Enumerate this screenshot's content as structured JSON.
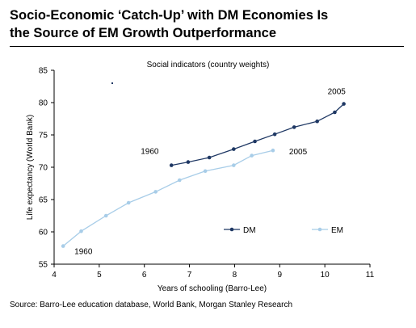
{
  "title_line1": "Socio-Economic ‘Catch-Up’ with DM Economies Is",
  "title_line2": "the Source of EM Growth Outperformance",
  "source": "Source: Barro-Lee education database, World Bank, Morgan Stanley Research",
  "chart_data": {
    "type": "line",
    "title": "Social indicators (country weights)",
    "xlabel": "Years of schooling (Barro-Lee)",
    "ylabel": "Life expectancy (World Bank)",
    "xlim": [
      4,
      11
    ],
    "ylim": [
      55,
      85
    ],
    "xticks": [
      4,
      5,
      6,
      7,
      8,
      9,
      10,
      11
    ],
    "yticks": [
      55,
      60,
      65,
      70,
      75,
      80,
      85
    ],
    "grid": false,
    "legend_position": "lower-right",
    "series": [
      {
        "name": "DM",
        "color": "#1f3864",
        "x": [
          6.6,
          6.97,
          7.44,
          7.98,
          8.45,
          8.89,
          9.32,
          9.83,
          10.22,
          10.42
        ],
        "y": [
          70.3,
          70.8,
          71.5,
          72.8,
          74.0,
          75.1,
          76.2,
          77.1,
          78.5,
          79.8
        ]
      },
      {
        "name": "EM",
        "color": "#a8cde8",
        "x": [
          4.2,
          4.6,
          5.15,
          5.65,
          6.25,
          6.78,
          7.35,
          7.98,
          8.38,
          8.85
        ],
        "y": [
          57.8,
          60.1,
          62.5,
          64.5,
          66.2,
          68.0,
          69.4,
          70.3,
          71.8,
          72.6
        ]
      }
    ],
    "annotations": [
      {
        "text": "1960",
        "series": "DM",
        "x": 6.6,
        "y": 70.3
      },
      {
        "text": "2005",
        "series": "DM",
        "x": 10.42,
        "y": 79.8
      },
      {
        "text": "1960",
        "series": "EM",
        "x": 4.2,
        "y": 57.8
      },
      {
        "text": "2005",
        "series": "EM",
        "x": 8.85,
        "y": 72.6
      }
    ]
  }
}
